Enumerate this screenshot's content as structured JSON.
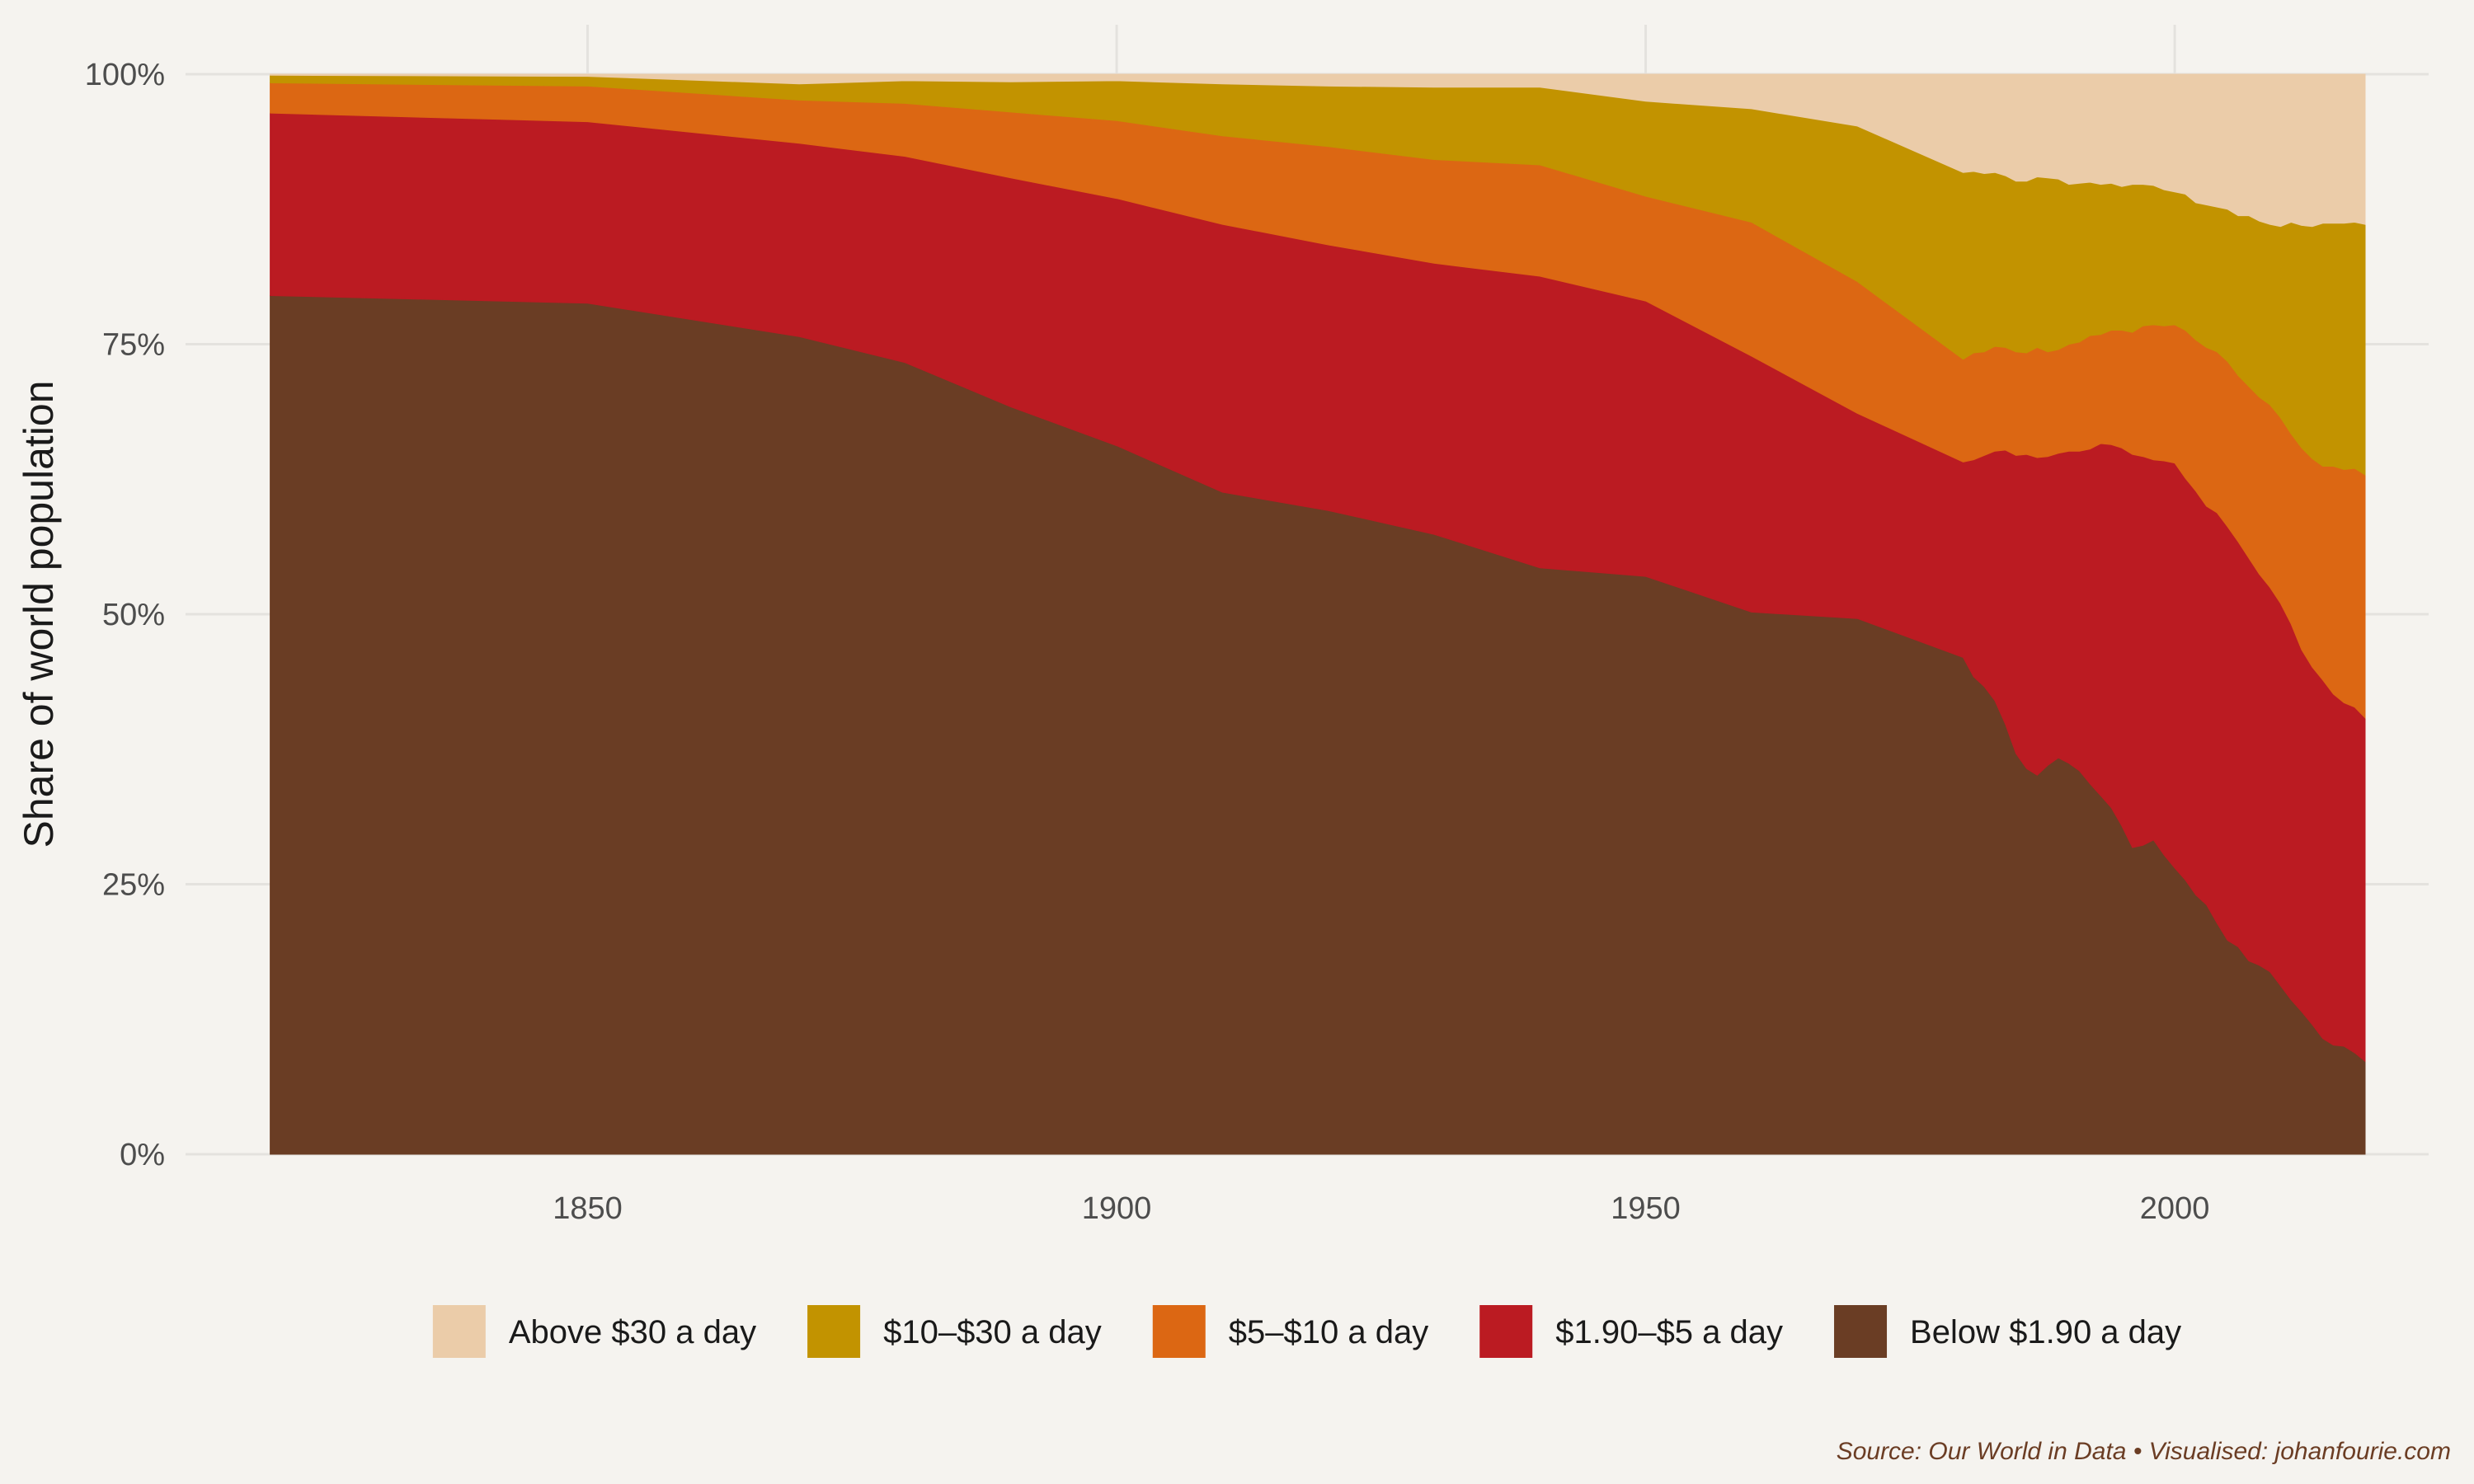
{
  "chart_data": {
    "type": "area",
    "stacked": true,
    "normalized": true,
    "xlabel": "",
    "ylabel": "Share of world population",
    "xlim": [
      1812,
      2024
    ],
    "ylim": [
      0,
      100
    ],
    "x_ticks": [
      1850,
      1900,
      1950,
      2000
    ],
    "y_ticks": [
      0,
      25,
      50,
      75,
      100
    ],
    "y_tick_labels": [
      "0%",
      "25%",
      "50%",
      "75%",
      "100%"
    ],
    "grid": true,
    "legend_position": "bottom",
    "background": "#f5f3ef",
    "x": [
      1820,
      1850,
      1870,
      1880,
      1890,
      1900,
      1910,
      1920,
      1930,
      1940,
      1950,
      1960,
      1970,
      1980,
      1981,
      1982,
      1983,
      1984,
      1985,
      1986,
      1987,
      1988,
      1989,
      1990,
      1991,
      1992,
      1993,
      1994,
      1995,
      1996,
      1997,
      1998,
      1999,
      2000,
      2001,
      2002,
      2003,
      2004,
      2005,
      2006,
      2007,
      2008,
      2009,
      2010,
      2011,
      2012,
      2013,
      2014,
      2015,
      2016,
      2017,
      2018
    ],
    "series": [
      {
        "name": "Below $1.90 a day",
        "color": "#6a3d24",
        "values": [
          79.5,
          78.8,
          75.7,
          73.3,
          69.2,
          65.6,
          61.3,
          59.6,
          57.4,
          54.3,
          53.5,
          50.2,
          49.6,
          46,
          44.2,
          43.3,
          42,
          39.8,
          37.1,
          35.7,
          35.1,
          36,
          36.7,
          36.2,
          35.5,
          34.3,
          33.2,
          32.1,
          30.4,
          28.4,
          28.6,
          29.1,
          27.7,
          26.5,
          25.4,
          24,
          23.1,
          21.4,
          19.8,
          19.2,
          17.9,
          17.5,
          16.9,
          15.6,
          14.3,
          13.2,
          12,
          10.7,
          10.1,
          10,
          9.4,
          8.6
        ]
      },
      {
        "name": "$1.90–$5 a day",
        "color": "#bb1b22",
        "values": [
          16.9,
          16.8,
          17.9,
          19.1,
          21.2,
          22.9,
          24.8,
          24.6,
          25.1,
          27,
          25.5,
          23.7,
          19,
          18.1,
          20.1,
          21.4,
          23.1,
          25.4,
          27.6,
          29.1,
          29.4,
          28.6,
          28.2,
          28.9,
          29.6,
          31,
          32.6,
          33.6,
          35,
          36.4,
          36,
          35.2,
          36.5,
          37.5,
          37.2,
          37.4,
          36.9,
          38,
          38.3,
          37.5,
          37.3,
          36.2,
          35.6,
          35.4,
          34.8,
          33.5,
          33.1,
          33.2,
          32.5,
          31.8,
          32,
          31.8
        ]
      },
      {
        "name": "$5–$10 a day",
        "color": "#dc6713",
        "values": [
          2.8,
          3.3,
          4,
          4.9,
          6.1,
          7.2,
          8.2,
          9.1,
          9.6,
          10.3,
          9.7,
          12.4,
          12.2,
          9.5,
          9.9,
          9.6,
          9.7,
          9.5,
          9.6,
          9.4,
          10.2,
          9.7,
          9.6,
          9.9,
          10.1,
          10.5,
          10.1,
          10.6,
          10.9,
          11.3,
          12.1,
          12.5,
          12.5,
          12.8,
          13.7,
          14,
          14.7,
          14.9,
          15.3,
          15.4,
          15.9,
          16.4,
          16.9,
          17.2,
          17.6,
          18.7,
          19.3,
          19.8,
          21.1,
          21.6,
          22.1,
          22.5
        ]
      },
      {
        "name": "$10–$30 a day",
        "color": "#c29300",
        "values": [
          0.7,
          0.9,
          1.5,
          2.1,
          2.8,
          3.7,
          4.8,
          5.6,
          6.7,
          7.2,
          8.8,
          10.5,
          14.4,
          17.3,
          16.8,
          16.5,
          16.1,
          15.9,
          15.8,
          15.9,
          15.8,
          16.1,
          15.8,
          14.8,
          14.7,
          14.2,
          13.9,
          13.6,
          13.3,
          13.7,
          13.1,
          12.9,
          12.6,
          12.3,
          12.6,
          12.7,
          13.2,
          13.4,
          14.1,
          14.8,
          15.8,
          16.3,
          16.7,
          17.7,
          19.6,
          20.6,
          21.5,
          22.5,
          22.5,
          22.8,
          22.8,
          23.2
        ]
      },
      {
        "name": "Above $30 a day",
        "color": "#ebcca9",
        "values": [
          0.1,
          0.2,
          0.9,
          0.6,
          0.7,
          0.6,
          0.9,
          1.1,
          1.2,
          1.2,
          2.5,
          3.2,
          4.8,
          9.1,
          9,
          9.2,
          9.1,
          9.4,
          9.9,
          9.9,
          9.5,
          9.6,
          9.7,
          10.2,
          10.1,
          10,
          10.2,
          10.1,
          10.4,
          10.2,
          10.2,
          10.3,
          10.7,
          10.9,
          11.1,
          11.9,
          12.1,
          12.3,
          12.5,
          13.1,
          13.1,
          13.6,
          13.9,
          14.1,
          13.7,
          14,
          14.1,
          13.8,
          13.8,
          13.8,
          13.7,
          13.9
        ]
      }
    ]
  },
  "legend": {
    "items": [
      {
        "label": "Above $30 a day",
        "color": "#ebcca9"
      },
      {
        "label": "$10–$30 a day",
        "color": "#c29300"
      },
      {
        "label": "$5–$10 a day",
        "color": "#dc6713"
      },
      {
        "label": "$1.90–$5 a day",
        "color": "#bb1b22"
      },
      {
        "label": "Below $1.90 a day",
        "color": "#6a3d24"
      }
    ]
  },
  "caption": "Source: Our World in Data • Visualised: johanfourie.com"
}
